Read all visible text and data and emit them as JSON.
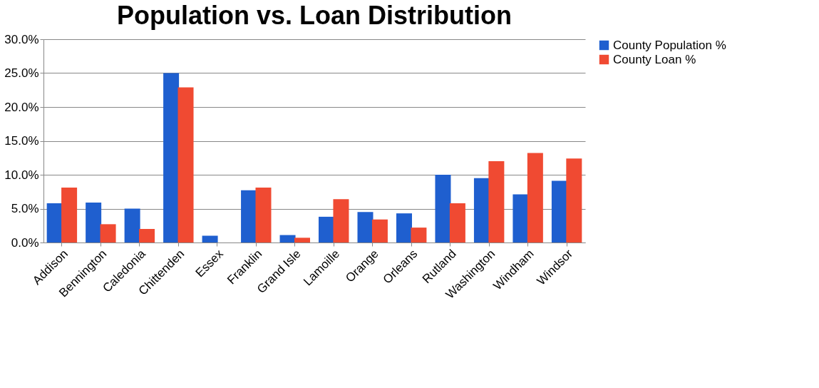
{
  "chart_data": {
    "type": "bar",
    "title": "Population vs. Loan Distribution",
    "categories": [
      "Addison",
      "Bennington",
      "Caledonia",
      "Chittenden",
      "Essex",
      "Franklin",
      "Grand Isle",
      "Lamoille",
      "Orange",
      "Orleans",
      "Rutland",
      "Washington",
      "Windham",
      "Windsor"
    ],
    "series": [
      {
        "name": "County Population %",
        "color": "#1f5fcf",
        "values": [
          5.8,
          5.9,
          5.0,
          25.0,
          1.0,
          7.7,
          1.1,
          3.8,
          4.5,
          4.3,
          10.0,
          9.5,
          7.1,
          9.1
        ]
      },
      {
        "name": "County Loan %",
        "color": "#f04a32",
        "values": [
          8.1,
          2.7,
          2.0,
          22.9,
          0,
          8.1,
          0.7,
          6.4,
          3.4,
          2.2,
          5.8,
          12.0,
          13.2,
          12.4
        ]
      }
    ],
    "ylim": [
      0,
      30
    ],
    "yticks": [
      {
        "value": 0,
        "label": "0.0%"
      },
      {
        "value": 5,
        "label": "5.0%"
      },
      {
        "value": 10,
        "label": "10.0%"
      },
      {
        "value": 15,
        "label": "15.0%"
      },
      {
        "value": 20,
        "label": "20.0%"
      },
      {
        "value": 25,
        "label": "25.0%"
      },
      {
        "value": 30,
        "label": "30.0%"
      }
    ],
    "grid": "y",
    "legend": "right"
  }
}
